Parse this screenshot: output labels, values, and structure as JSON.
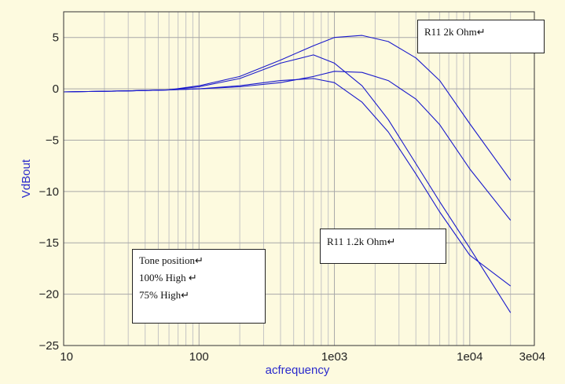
{
  "chart_data": {
    "type": "line",
    "xlabel": "acfrequency",
    "ylabel": "VdBout",
    "xscale": "log",
    "xlim": [
      10,
      30000
    ],
    "ylim": [
      -25,
      7.5
    ],
    "y_ticks": [
      5,
      0,
      -5,
      -10,
      -15,
      -20,
      -25
    ],
    "y_tick_labels": [
      "5",
      "0",
      "−5",
      "−10",
      "−15",
      "−20",
      "−25"
    ],
    "x_ticks": [
      10,
      100,
      1000,
      10000,
      30000
    ],
    "x_tick_labels": [
      "10",
      "100",
      "1e03",
      "1e04",
      "3e04"
    ],
    "grid": true,
    "series": [
      {
        "x": [
          10,
          30,
          60,
          100,
          200,
          400,
          700,
          1000,
          1600,
          2500,
          4000,
          6000,
          10000,
          20000
        ],
        "y": [
          -0.3,
          -0.2,
          -0.1,
          0.3,
          1.2,
          2.8,
          4.2,
          5.0,
          5.2,
          4.6,
          3.0,
          0.8,
          -3.4,
          -8.9
        ]
      },
      {
        "x": [
          10,
          30,
          60,
          100,
          200,
          400,
          700,
          1000,
          1600,
          2500,
          4000,
          6000,
          10000,
          20000
        ],
        "y": [
          -0.3,
          -0.2,
          -0.1,
          0.2,
          1.0,
          2.5,
          3.3,
          2.5,
          0.3,
          -3.0,
          -7.3,
          -11.0,
          -15.5,
          -21.8
        ]
      },
      {
        "x": [
          10,
          30,
          60,
          100,
          200,
          400,
          700,
          1000,
          1600,
          2500,
          4000,
          6000,
          10000,
          20000
        ],
        "y": [
          -0.3,
          -0.2,
          -0.1,
          0.0,
          0.2,
          0.6,
          1.2,
          1.7,
          1.6,
          0.8,
          -1.0,
          -3.5,
          -7.8,
          -12.8
        ]
      },
      {
        "x": [
          10,
          30,
          60,
          100,
          200,
          400,
          700,
          1000,
          1600,
          2500,
          4000,
          6000,
          10000,
          20000
        ],
        "y": [
          -0.3,
          -0.2,
          -0.1,
          0.0,
          0.3,
          0.8,
          1.0,
          0.6,
          -1.3,
          -4.2,
          -8.3,
          -12.0,
          -16.2,
          -19.2
        ]
      }
    ],
    "annotations": [
      {
        "lines": [
          "R11 2k Ohm↵"
        ]
      },
      {
        "lines": [
          "R11 1.2k Ohm↵"
        ]
      },
      {
        "lines": [
          "Tone position↵",
          "100% High ↵",
          "75% High↵"
        ]
      }
    ]
  }
}
